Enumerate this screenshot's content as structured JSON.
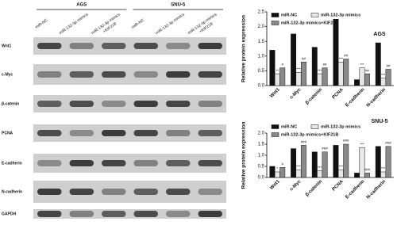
{
  "chart_data": [
    {
      "type": "bar",
      "title": "AGS",
      "y_label": "Relative protein expression",
      "categories": [
        "Wnt1",
        "c-Myc",
        "β-catenin",
        "PCNA",
        "E-cadherin",
        "N-cadherin"
      ],
      "series": [
        {
          "name": "miR-NC",
          "color": "#111111",
          "values": [
            1.2,
            1.75,
            1.3,
            2.25,
            0.2,
            1.45
          ],
          "markers": [
            null,
            null,
            null,
            null,
            null,
            null
          ]
        },
        {
          "name": "miR-132-3p mimics",
          "color": "#e8e8e8",
          "values": [
            0.4,
            0.45,
            0.4,
            0.8,
            0.6,
            0.25
          ],
          "markers": [
            "**",
            "***",
            "***",
            "***",
            "***",
            "***"
          ]
        },
        {
          "name": "miR-132-3p mimics+KIF21B",
          "color": "#8a8a8a",
          "values": [
            0.6,
            0.8,
            0.6,
            0.9,
            0.4,
            0.55
          ],
          "markers": [
            "#",
            "##",
            "##",
            "##",
            "##",
            "##"
          ]
        }
      ],
      "ylim": [
        0,
        2.5
      ],
      "yticks": [
        {
          "value": 0,
          "label": "0.0"
        },
        0.5,
        {
          "value": 1,
          "label": "1.0"
        },
        1.5,
        {
          "value": 2,
          "label": "2.0"
        },
        2.5
      ],
      "legend": "upper left"
    },
    {
      "type": "bar",
      "title": "SNU-5",
      "y_label": "Relative protein expression",
      "categories": [
        "Wnt1",
        "c-Myc",
        "β-catenin",
        "PCNA",
        "E-cadherin",
        "N-cadherin"
      ],
      "series": [
        {
          "name": "miR-NC",
          "color": "#111111",
          "values": [
            0.5,
            1.3,
            1.15,
            1.45,
            0.2,
            1.4
          ],
          "markers": [
            null,
            null,
            null,
            null,
            null,
            null
          ]
        },
        {
          "name": "miR-132-3p mimics",
          "color": "#e8e8e8",
          "values": [
            0.25,
            0.35,
            0.3,
            0.35,
            1.35,
            0.25
          ],
          "markers": [
            "*",
            "***",
            "***",
            "***",
            "***",
            "***"
          ]
        },
        {
          "name": "miR-132-3p mimics+KIF21B",
          "color": "#8a8a8a",
          "values": [
            0.45,
            1.45,
            1.15,
            1.5,
            0.2,
            1.4
          ],
          "markers": [
            "#",
            "###",
            "###",
            "###",
            "###",
            "###"
          ]
        }
      ],
      "ylim": [
        0,
        2
      ],
      "yticks": [
        {
          "value": 0,
          "label": "0.0"
        },
        0.5,
        {
          "value": 1,
          "label": "1.0"
        },
        1.5,
        {
          "value": 2,
          "label": "2.0"
        }
      ],
      "legend": "upper left"
    }
  ],
  "blot": {
    "groups": [
      {
        "name": "AGS",
        "lanes": [
          [
            "miR-NC"
          ],
          [
            "miR-132-3p mimics"
          ],
          [
            "miR-132-3p mimics",
            "+KIF21B"
          ]
        ]
      },
      {
        "name": "SNU-5",
        "lanes": [
          [
            "miR-NC"
          ],
          [
            "miR-132-3p mimics"
          ],
          [
            "miR-132-3p mimics",
            "+KIF21B"
          ]
        ]
      }
    ],
    "rows": [
      "Wnt1",
      "c-Myc",
      "β-catenin",
      "PCNA",
      "E-cadherin",
      "N-cadherin",
      "GAPDH"
    ]
  }
}
